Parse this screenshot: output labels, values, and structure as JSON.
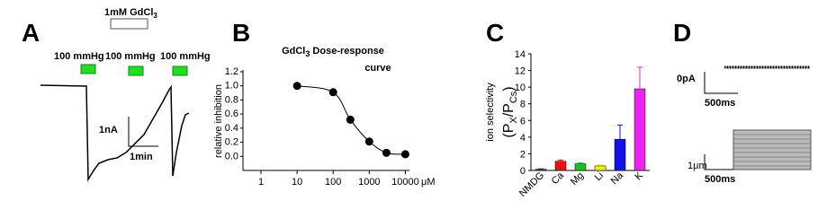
{
  "panel_labels": [
    "A",
    "B",
    "C",
    "D"
  ],
  "panel_a": {
    "drug_label": "1mM GdCl",
    "drug_sub": "3",
    "pressure_labels": [
      "100 mmHg",
      "100 mmHg",
      "100 mmHg"
    ],
    "scale_y": "1nA",
    "scale_x": "1min"
  },
  "panel_d": {
    "top_scale_y": "0pA",
    "top_scale_x": "500ms",
    "bottom_scale_y": "1μm",
    "bottom_scale_x": "500ms"
  },
  "chart_data": [
    {
      "type": "line",
      "title": "GdCl",
      "title_sub": "3",
      "title_rest": " Dose-response",
      "title_line2": "curve",
      "ylabel": "relative inhibition",
      "xunit": "μM",
      "log_x": true,
      "x": [
        10,
        100,
        300,
        1000,
        3000,
        10000
      ],
      "values": [
        1.0,
        0.91,
        0.52,
        0.21,
        0.05,
        0.03
      ],
      "color": "#000000",
      "xlim": [
        1,
        13000
      ],
      "xticks": [
        1,
        10,
        100,
        1000,
        10000
      ],
      "ylim": [
        -0.2,
        1.2
      ],
      "yticks": [
        {
          "value": 0,
          "label": "0.0"
        },
        0.2,
        0.4,
        0.6,
        0.8,
        {
          "value": 1,
          "label": "1.0"
        },
        1.2
      ]
    },
    {
      "type": "bar",
      "ylabel": "ion selectivity",
      "ylabel2": {
        "a": "(P",
        "b": "X",
        "c": "/P",
        "d": "Cs",
        "e": ")"
      },
      "categories": [
        "NMDG",
        "Ca",
        "Mg",
        "Li",
        "Na",
        "K"
      ],
      "values": [
        0.15,
        1.1,
        0.8,
        0.55,
        3.75,
        9.8
      ],
      "errors": [
        0.05,
        0.15,
        0.1,
        0.1,
        1.7,
        2.6
      ],
      "colors": [
        "#444444",
        "#ee1111",
        "#22bb22",
        "#eeee22",
        "#1111ee",
        "#ee22ee"
      ],
      "ylim": [
        0,
        14
      ],
      "yticks": [
        0,
        2,
        4,
        6,
        8,
        10,
        12,
        14
      ]
    }
  ]
}
